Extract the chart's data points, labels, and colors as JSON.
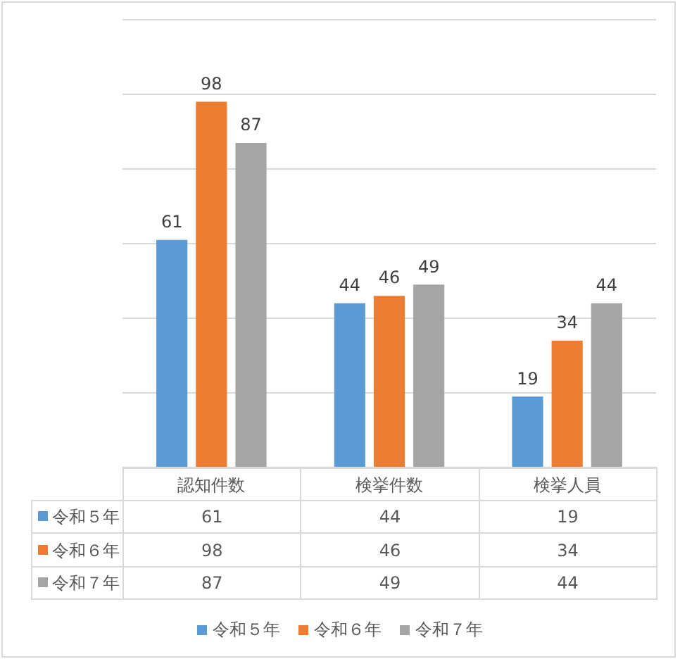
{
  "chart_data": [
    {
      "type": "bar",
      "categories": [
        "認知件数",
        "検挙件数",
        "検挙人員"
      ],
      "series": [
        {
          "name": "令和５年",
          "color": "#5b9bd5",
          "values": [
            61,
            44,
            19
          ]
        },
        {
          "name": "令和６年",
          "color": "#ed7d31",
          "values": [
            98,
            46,
            34
          ]
        },
        {
          "name": "令和７年",
          "color": "#a5a5a5",
          "values": [
            87,
            49,
            44
          ]
        }
      ],
      "ylim": [
        0,
        120
      ],
      "yticks": [
        {
          "value": 0,
          "label": null
        },
        {
          "value": 20,
          "label": null
        },
        {
          "value": 40,
          "label": null
        },
        {
          "value": 60,
          "label": null
        },
        {
          "value": 80,
          "label": null
        },
        {
          "value": 100,
          "label": null
        },
        {
          "value": 120,
          "label": null
        }
      ],
      "tick_labels": "x",
      "grid": "y",
      "data_labels": true,
      "legend": "bottom"
    },
    {
      "type": "other",
      "annotations": [
        "61",
        "44",
        "19",
        "98",
        "46",
        "34",
        "87",
        "49",
        "44"
      ]
    }
  ]
}
